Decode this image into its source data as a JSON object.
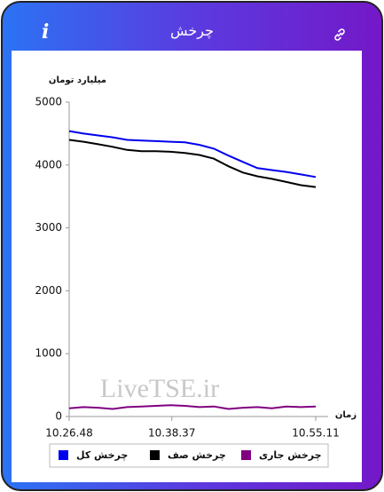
{
  "header": {
    "title": "چرخش",
    "info": "i"
  },
  "watermark": "LiveTSE.ir",
  "chart_data": {
    "type": "line",
    "ylabel": "میلیارد تومان",
    "xlabel": "زمان",
    "x": [
      37608,
      37708,
      37808,
      37908,
      38008,
      38108,
      38208,
      38308,
      38408,
      38508,
      38608,
      38708,
      38808,
      38908,
      39008,
      39108,
      39208,
      39311
    ],
    "xlim": [
      37608,
      39311
    ],
    "xticks": [
      {
        "value": 37608,
        "label": "10.26.48"
      },
      {
        "value": 38317,
        "label": "10.38.37"
      },
      {
        "value": 39311,
        "label": "10.55.11"
      }
    ],
    "ylim": [
      0,
      5000
    ],
    "yticks": [
      0,
      1000,
      2000,
      3000,
      4000,
      5000
    ],
    "grid": false,
    "series": [
      {
        "name": "چرخش کل",
        "color": "#0000ee",
        "values": [
          4540,
          4500,
          4470,
          4440,
          4400,
          4390,
          4380,
          4370,
          4360,
          4320,
          4260,
          4150,
          4050,
          3950,
          3920,
          3890,
          3850,
          3810
        ]
      },
      {
        "name": "چرخش صف",
        "color": "#000000",
        "values": [
          4400,
          4370,
          4330,
          4290,
          4240,
          4220,
          4220,
          4210,
          4190,
          4160,
          4100,
          3980,
          3880,
          3820,
          3780,
          3730,
          3680,
          3650
        ]
      },
      {
        "name": "چرخش جاری",
        "color": "#800080",
        "values": [
          130,
          150,
          140,
          120,
          150,
          160,
          170,
          180,
          170,
          150,
          160,
          120,
          140,
          150,
          130,
          160,
          150,
          160
        ]
      }
    ]
  }
}
